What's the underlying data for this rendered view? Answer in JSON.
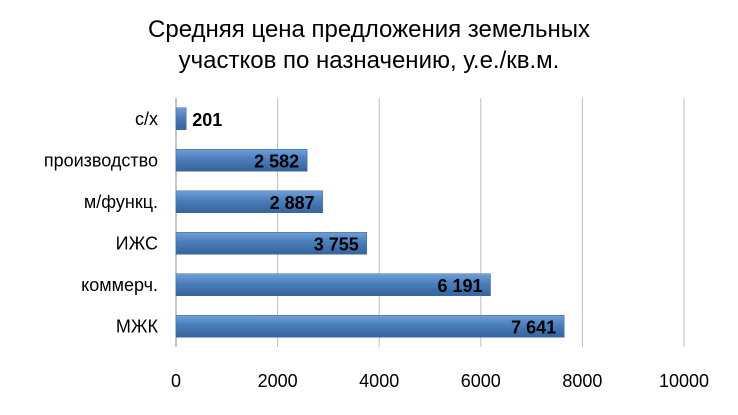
{
  "chart_data": {
    "type": "bar",
    "orientation": "horizontal",
    "title_lines": [
      "Средняя цена предложения земельных",
      "участков по назначению, у.е./кв.м."
    ],
    "categories": [
      "с/х",
      "производство",
      "м/функц.",
      "ИЖС",
      "коммерч.",
      "МЖК"
    ],
    "values": [
      201,
      2582,
      2887,
      3755,
      6191,
      7641
    ],
    "data_labels": [
      "201",
      "2 582",
      "2 887",
      "3 755",
      "6 191",
      "7 641"
    ],
    "xticks": [
      "0",
      "2000",
      "4000",
      "6000",
      "8000",
      "10000"
    ],
    "xlim": [
      0,
      10000
    ],
    "grid": "vertical",
    "bar_color": "#4a7ebb",
    "legend": "none"
  }
}
